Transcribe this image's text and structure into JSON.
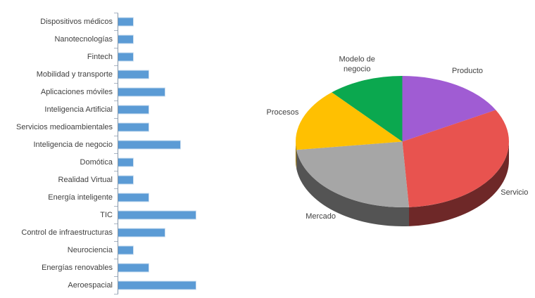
{
  "chart_data": [
    {
      "type": "bar",
      "orientation": "horizontal",
      "title": "",
      "xlabel": "",
      "ylabel": "",
      "grid": false,
      "legend": false,
      "xlim": [
        0,
        5
      ],
      "categories": [
        "Dispositivos médicos",
        "Nanotecnologías",
        "Fintech",
        "Mobilidad y transporte",
        "Aplicaciones móviles",
        "Inteligencia Artificial",
        "Servicios medioambientales",
        "Inteligencia de negocio",
        "Domótica",
        "Realidad Virtual",
        "Energía inteligente",
        "TIC",
        "Control de infraestructuras",
        "Neurociencia",
        "Energías renovables",
        "Aeroespacial"
      ],
      "values": [
        1,
        1,
        1,
        2,
        3,
        2,
        2,
        4,
        1,
        1,
        2,
        5,
        3,
        1,
        2,
        5
      ],
      "bar_color": "#5B9BD5",
      "bar_border_color": "#CFE0F1",
      "axis_color": "#8496A9",
      "label_color": "#404040"
    },
    {
      "type": "pie",
      "style": "3d",
      "title": "",
      "legend": false,
      "direction": "clockwise",
      "start_angle_deg": 0,
      "unit": "percent",
      "labels": [
        "Producto",
        "Servicio",
        "Mercado",
        "Procesos",
        "Modelo de\nnegocio"
      ],
      "values": [
        17,
        32,
        24,
        15.5,
        11.5
      ],
      "colors": [
        "#A05CD3",
        "#E8534F",
        "#A6A6A6",
        "#FFC001",
        "#0BA84F"
      ],
      "side_colors": [
        "#5A3377",
        "#6E2828",
        "#545454",
        "#8F6B00",
        "#055B2C"
      ],
      "label_color": "#404040"
    }
  ]
}
